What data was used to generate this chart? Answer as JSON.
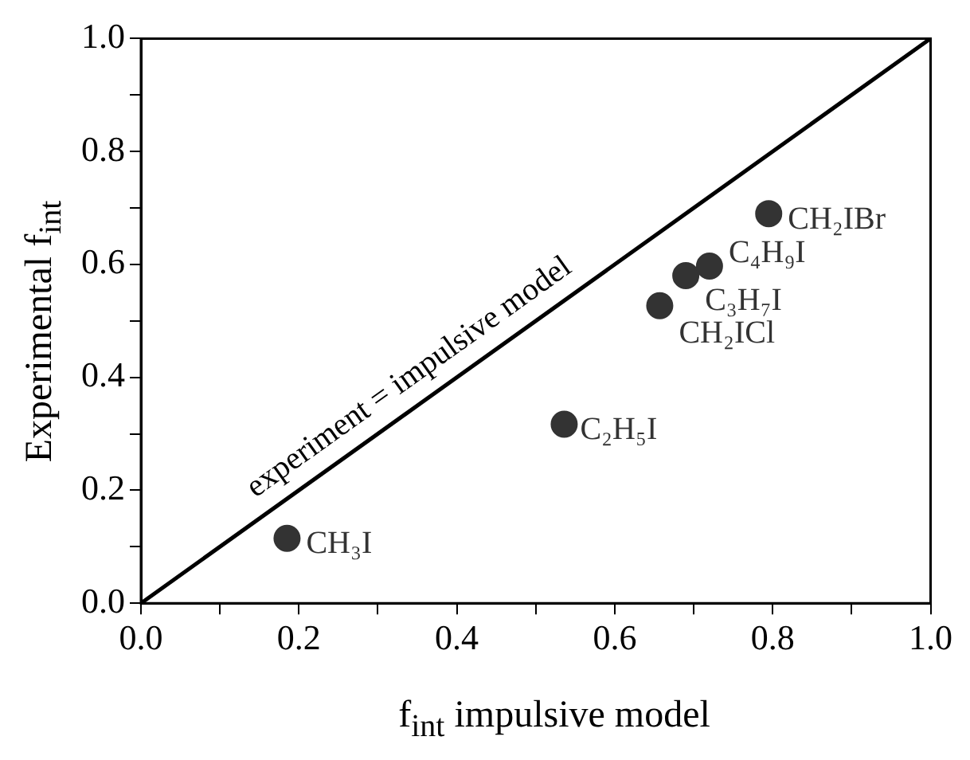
{
  "chart_data": {
    "type": "scatter",
    "xlabel": "f$_{int}$ impulsive model",
    "ylabel": "Experimental f$_{int}$",
    "xlim": [
      0,
      1
    ],
    "ylim": [
      0,
      1
    ],
    "xticks": [
      {
        "value": 0,
        "label": "0.0"
      },
      {
        "value": 0.1,
        "label": null
      },
      {
        "value": 0.2,
        "label": "0.2"
      },
      {
        "value": 0.3,
        "label": null
      },
      {
        "value": 0.4,
        "label": "0.4"
      },
      {
        "value": 0.5,
        "label": null
      },
      {
        "value": 0.6,
        "label": "0.6"
      },
      {
        "value": 0.7,
        "label": null
      },
      {
        "value": 0.8,
        "label": "0.8"
      },
      {
        "value": 0.9,
        "label": null
      },
      {
        "value": 1,
        "label": "1.0"
      }
    ],
    "yticks": [
      {
        "value": 0,
        "label": "0.0"
      },
      {
        "value": 0.1,
        "label": null
      },
      {
        "value": 0.2,
        "label": "0.2"
      },
      {
        "value": 0.3,
        "label": null
      },
      {
        "value": 0.4,
        "label": "0.4"
      },
      {
        "value": 0.5,
        "label": null
      },
      {
        "value": 0.6,
        "label": "0.6"
      },
      {
        "value": 0.7,
        "label": null
      },
      {
        "value": 0.8,
        "label": "0.8"
      },
      {
        "value": 0.9,
        "label": null
      },
      {
        "value": 1,
        "label": "1.0"
      }
    ],
    "grid": false,
    "legend": false,
    "marker": "circle",
    "series": [
      {
        "name": "CH₃I",
        "color": "#333333",
        "x": [
          0.185
        ],
        "values": [
          0.115
        ]
      },
      {
        "name": "C₂H₅I",
        "color": "#333333",
        "x": [
          0.536
        ],
        "values": [
          0.317
        ]
      },
      {
        "name": "CH₂ICl",
        "color": "#333333",
        "x": [
          0.657
        ],
        "values": [
          0.527
        ]
      },
      {
        "name": "C₃H₇I",
        "color": "#333333",
        "x": [
          0.69
        ],
        "values": [
          0.58
        ]
      },
      {
        "name": "C₄H₉I",
        "color": "#333333",
        "x": [
          0.72
        ],
        "values": [
          0.597
        ]
      },
      {
        "name": "CH₂IBr",
        "color": "#333333",
        "x": [
          0.795
        ],
        "values": [
          0.69
        ]
      },
      {
        "type": "line",
        "color": "#000000",
        "line_style": "solid",
        "marker": "none",
        "x": [
          0,
          1
        ],
        "values": [
          0,
          1
        ]
      }
    ],
    "annotations": [
      "experiment = impulsive model"
    ]
  }
}
